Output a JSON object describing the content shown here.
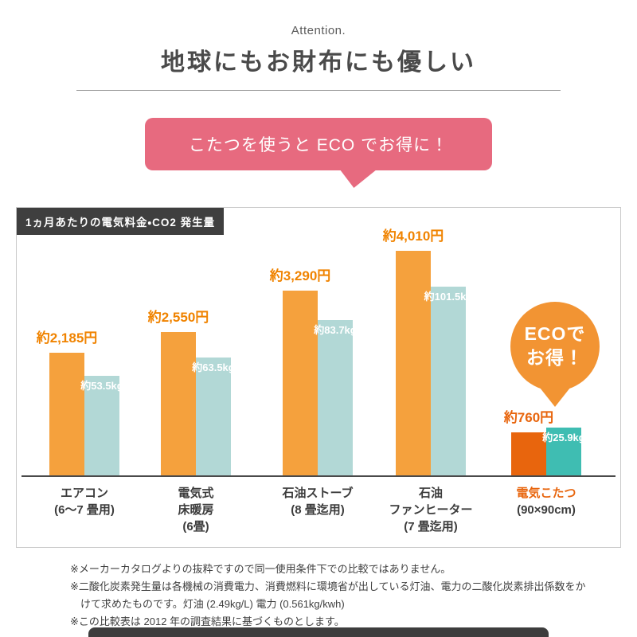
{
  "header": {
    "attention": "Attention.",
    "title": "地球にもお財布にも優しい"
  },
  "bubble": {
    "text": "こたつを使うと ECO でお得に！"
  },
  "chart": {
    "label": "1ヵ月あたりの電気料金・CO2 発生量",
    "badge_line1": "ECOで",
    "badge_line2": "お得！"
  },
  "chart_data": {
    "type": "bar",
    "title": "1ヵ月あたりの電気料金・CO2 発生量",
    "categories": [
      "エアコン(6〜7畳用)",
      "電気式床暖房(6畳)",
      "石油ストーブ(8畳迄用)",
      "石油ファンヒーター(7畳迄用)",
      "電気こたつ(90×90cm)"
    ],
    "category_label_lines": [
      [
        "エアコン",
        "(6〜7 畳用)"
      ],
      [
        "電気式",
        "床暖房",
        "(6畳)"
      ],
      [
        "石油ストーブ",
        "(8 畳迄用)"
      ],
      [
        "石油",
        "ファンヒーター",
        "(7 畳迄用)"
      ],
      [
        "電気こたつ",
        "(90×90cm)"
      ]
    ],
    "series": [
      {
        "name": "電気料金",
        "unit": "円",
        "values": [
          2185,
          2550,
          3290,
          4010,
          760
        ],
        "labels": [
          "約2,185円",
          "約2,550円",
          "約3,290円",
          "約4,010円",
          "約760円"
        ],
        "color": "#f5a13d",
        "highlight_color": "#e8650d",
        "label_color": "#f08300"
      },
      {
        "name": "CO2発生量",
        "unit": "kg",
        "values": [
          53.5,
          63.5,
          83.7,
          101.5,
          25.9
        ],
        "labels": [
          "約53.5kg",
          "約63.5kg",
          "約83.7kg",
          "約101.5kg",
          "約25.9kg"
        ],
        "color": "#b2d8d6",
        "highlight_color": "#3fbdb2",
        "label_color": "#ffffff"
      }
    ],
    "highlight_index": 4,
    "price_axis_max": 4800,
    "co2_axis_max": 145,
    "grid": false,
    "legend": "none"
  },
  "footnotes": [
    "※メーカーカタログよりの抜粋ですので同一使用条件下での比較ではありません。",
    "※二酸化炭素発生量は各機械の消費電力、消費燃料に環境省が出している灯油、電力の二酸化炭素排出係数をかけて求めたものです。灯油 (2.49kg/L) 電力 (0.561kg/kwh)",
    "※この比較表は 2012 年の調査結果に基づくものとします。"
  ]
}
